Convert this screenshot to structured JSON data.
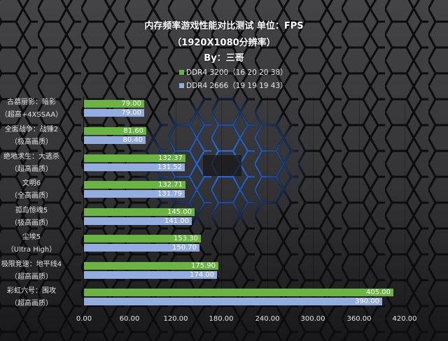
{
  "chart_data": {
    "type": "bar",
    "orientation": "horizontal",
    "title": "内存频率游戏性能对比测试 单位：FPS",
    "subtitle": "（1920X1080分辨率）",
    "byline": "By：三哥",
    "categories": [
      [
        "古墓丽影：暗影",
        "（超高+4XSSAA）"
      ],
      [
        "全面战争：战锤2",
        "（极高画质）"
      ],
      [
        "绝地求生：大逃杀",
        "（超高画质）"
      ],
      [
        "文明6",
        "（全高画质）"
      ],
      [
        "孤岛惊魂5",
        "（极高画质）"
      ],
      [
        "尘埃5",
        "（Ultra High）"
      ],
      [
        "极限竞速：地平线4",
        "（超高画质）"
      ],
      [
        "彩虹六号：围攻",
        "（超高画质）"
      ]
    ],
    "series": [
      {
        "name": "DDR4 3200（16 20 20 38）",
        "color": "#6ab541",
        "values": [
          79.0,
          81.6,
          132.37,
          132.71,
          145.0,
          153.3,
          175.9,
          405.0
        ],
        "labels": [
          "79.00",
          "81.60",
          "132.37",
          "132.71",
          "145.00",
          "153.30",
          "175.90",
          "405.00"
        ]
      },
      {
        "name": "DDR4 2666（19 19 19 43）",
        "color": "#93ade1",
        "values": [
          79.0,
          80.4,
          131.52,
          131.79,
          141.0,
          150.7,
          174.0,
          390.0
        ],
        "labels": [
          "79.00",
          "80.40",
          "131.52",
          "131.79",
          "141.00",
          "150.70",
          "174.00",
          "390.00"
        ]
      }
    ],
    "xlabel": "",
    "ylabel": "FPS",
    "xlim": [
      0,
      420
    ],
    "xticks": [
      "0.00",
      "60.00",
      "120.00",
      "180.00",
      "240.00",
      "300.00",
      "360.00",
      "420.00"
    ],
    "legend_position": "top",
    "grid": true
  }
}
